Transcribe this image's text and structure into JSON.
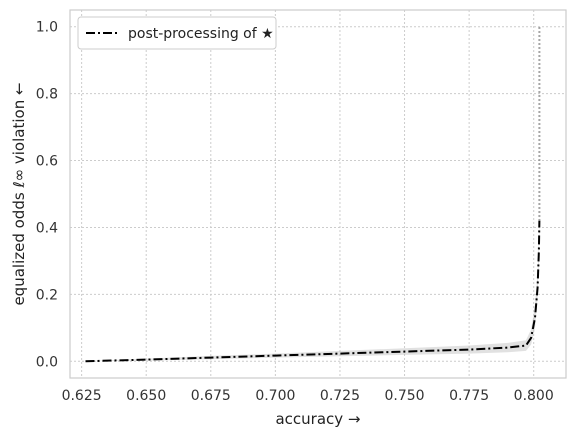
{
  "chart_data": {
    "type": "line",
    "xlabel": "accuracy →",
    "ylabel": "equalized odds ℓ∞ violation ←",
    "xlim": [
      0.6205,
      0.8125
    ],
    "ylim": [
      -0.05,
      1.05
    ],
    "xticks": [
      0.625,
      0.65,
      0.675,
      0.7,
      0.725,
      0.75,
      0.775,
      0.8
    ],
    "xtick_labels": [
      "0.625",
      "0.650",
      "0.675",
      "0.700",
      "0.725",
      "0.750",
      "0.775",
      "0.800"
    ],
    "yticks": [
      0.0,
      0.2,
      0.4,
      0.6,
      0.8,
      1.0
    ],
    "ytick_labels": [
      "0.0",
      "0.2",
      "0.4",
      "0.6",
      "0.8",
      "1.0"
    ],
    "grid": true,
    "legend_position": "top-left",
    "series": [
      {
        "name": "post-processing of ★",
        "style": "dash-dot",
        "color": "#000000",
        "x": [
          0.6265,
          0.65,
          0.675,
          0.7,
          0.725,
          0.75,
          0.775,
          0.79,
          0.797,
          0.799,
          0.8005,
          0.8015,
          0.802,
          0.8022
        ],
        "y": [
          0.0,
          0.005,
          0.011,
          0.017,
          0.023,
          0.029,
          0.035,
          0.041,
          0.047,
          0.07,
          0.13,
          0.22,
          0.33,
          0.42
        ],
        "y_lower": [
          0.0,
          0.002,
          0.006,
          0.011,
          0.015,
          0.019,
          0.023,
          0.027,
          0.031,
          0.05,
          0.1,
          0.19,
          0.3,
          0.39
        ],
        "y_upper": [
          0.0,
          0.008,
          0.016,
          0.023,
          0.031,
          0.039,
          0.047,
          0.055,
          0.063,
          0.095,
          0.17,
          0.26,
          0.37,
          0.44
        ]
      }
    ],
    "extra_lines": [
      {
        "style": "dotted",
        "color": "#888888",
        "x": [
          0.8022,
          0.8022
        ],
        "y": [
          0.42,
          1.0
        ]
      }
    ]
  }
}
